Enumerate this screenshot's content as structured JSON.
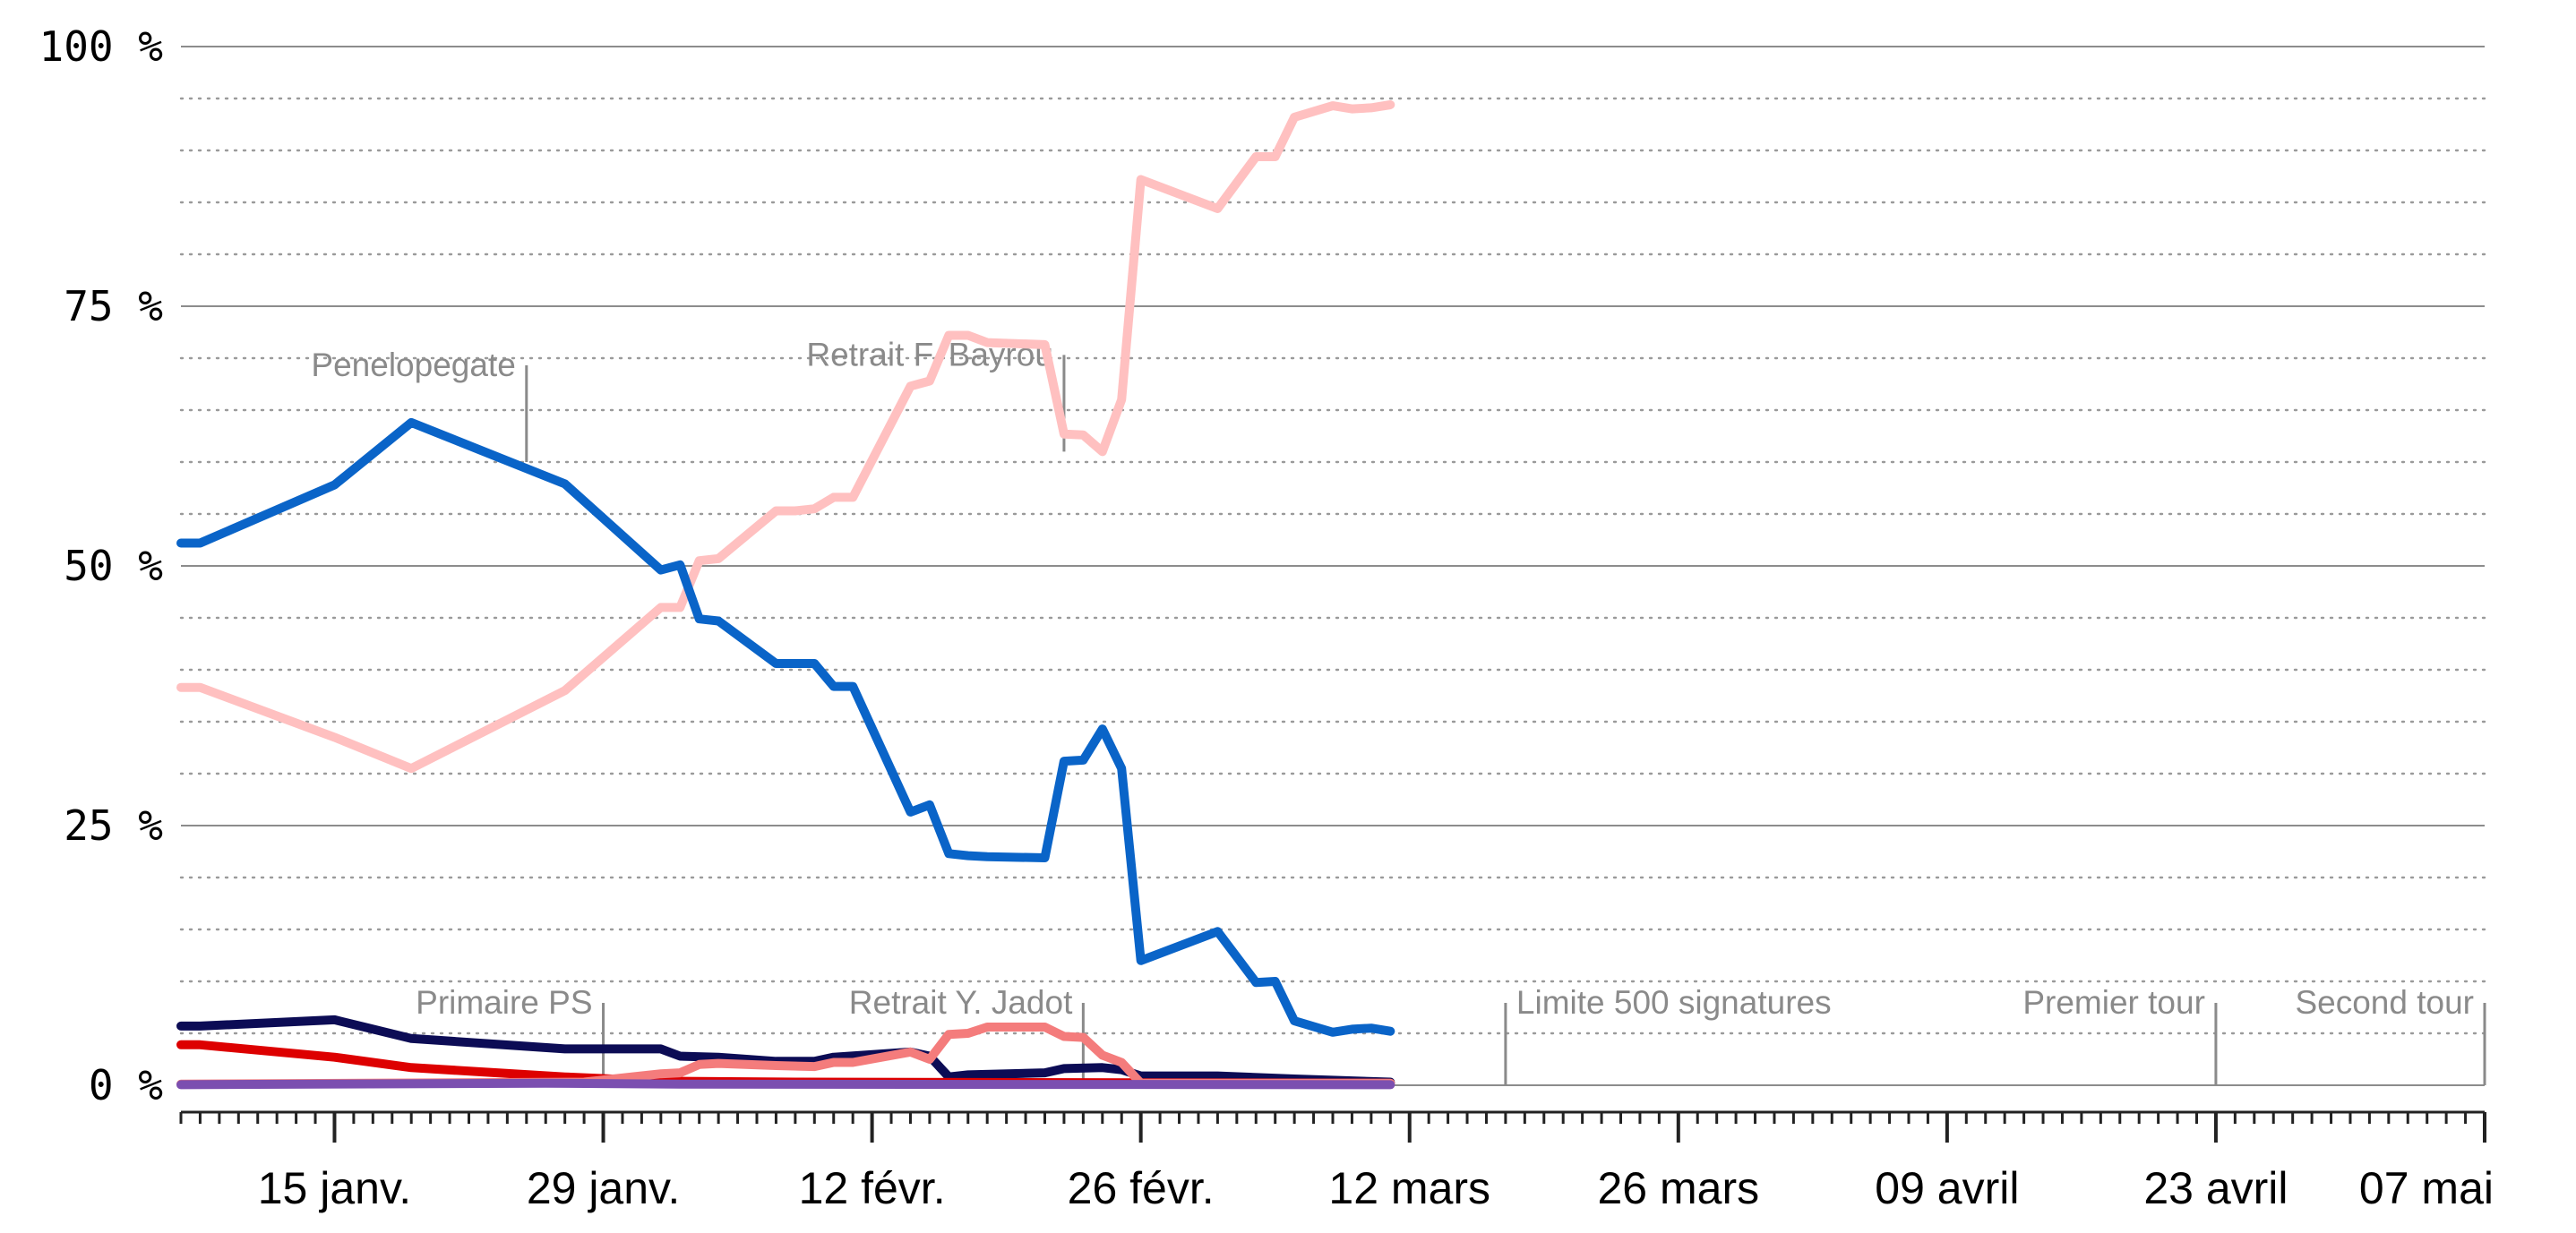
{
  "chart_data": {
    "type": "line",
    "x_axis": {
      "ticks": [
        {
          "date": "2017-01-15",
          "label": "15 janv."
        },
        {
          "date": "2017-01-29",
          "label": "29 janv."
        },
        {
          "date": "2017-02-12",
          "label": "12 févr."
        },
        {
          "date": "2017-02-26",
          "label": "26 févr."
        },
        {
          "date": "2017-03-12",
          "label": "12 mars"
        },
        {
          "date": "2017-03-26",
          "label": "26 mars"
        },
        {
          "date": "2017-04-09",
          "label": "09 avril"
        },
        {
          "date": "2017-04-23",
          "label": "23 avril"
        },
        {
          "date": "2017-05-07",
          "label": "07 mai"
        }
      ],
      "range": [
        "2017-01-07",
        "2017-05-07"
      ]
    },
    "y_axis": {
      "ticks": [
        {
          "value": 0,
          "label": "0 %"
        },
        {
          "value": 25,
          "label": "25 %"
        },
        {
          "value": 50,
          "label": "50 %"
        },
        {
          "value": 75,
          "label": "75 %"
        },
        {
          "value": 100,
          "label": "100 %"
        }
      ],
      "ylim": [
        0,
        100
      ],
      "minor_grid_step": 5,
      "grid": true
    },
    "annotations": [
      {
        "date": "2017-01-25",
        "label": "Penelopegate",
        "value": 60
      },
      {
        "date": "2017-01-29",
        "label": "Primaire PS",
        "value": 0
      },
      {
        "date": "2017-02-22",
        "label": "Retrait F. Bayrou",
        "value": 61
      },
      {
        "date": "2017-02-23",
        "label": "Retrait Y. Jadot",
        "value": 0
      },
      {
        "date": "2017-03-17",
        "label": "Limite 500 signatures",
        "value": 0
      },
      {
        "date": "2017-04-23",
        "label": "Premier tour",
        "value": 0
      },
      {
        "date": "2017-05-07",
        "label": "Second tour",
        "value": 0
      }
    ],
    "series": [
      {
        "color": "#ffc0c0",
        "points": [
          [
            "2017-01-07",
            38.3
          ],
          [
            "2017-01-08",
            38.3
          ],
          [
            "2017-01-15",
            33.5
          ],
          [
            "2017-01-19",
            30.5
          ],
          [
            "2017-01-27",
            38
          ],
          [
            "2017-02-01",
            46
          ],
          [
            "2017-02-02",
            46
          ],
          [
            "2017-02-03",
            50.5
          ],
          [
            "2017-02-04",
            50.7
          ],
          [
            "2017-02-07",
            55.3
          ],
          [
            "2017-02-08",
            55.3
          ],
          [
            "2017-02-09",
            55.5
          ],
          [
            "2017-02-10",
            56.6
          ],
          [
            "2017-02-11",
            56.6
          ],
          [
            "2017-02-14",
            67.3
          ],
          [
            "2017-02-15",
            67.8
          ],
          [
            "2017-02-16",
            72.2
          ],
          [
            "2017-02-17",
            72.2
          ],
          [
            "2017-02-18",
            71.5
          ],
          [
            "2017-02-21",
            71.3
          ],
          [
            "2017-02-22",
            62.7
          ],
          [
            "2017-02-23",
            62.6
          ],
          [
            "2017-02-24",
            61
          ],
          [
            "2017-02-25",
            66
          ],
          [
            "2017-02-26",
            87.2
          ],
          [
            "2017-03-02",
            84.4
          ],
          [
            "2017-03-04",
            89.4
          ],
          [
            "2017-03-05",
            89.4
          ],
          [
            "2017-03-06",
            93.2
          ],
          [
            "2017-03-08",
            94.3
          ],
          [
            "2017-03-09",
            94
          ],
          [
            "2017-03-10",
            94.1
          ],
          [
            "2017-03-11",
            94.4
          ]
        ]
      },
      {
        "color": "#0a64c8",
        "points": [
          [
            "2017-01-07",
            52.2
          ],
          [
            "2017-01-08",
            52.2
          ],
          [
            "2017-01-15",
            57.8
          ],
          [
            "2017-01-19",
            63.8
          ],
          [
            "2017-01-27",
            57.9
          ],
          [
            "2017-02-01",
            49.6
          ],
          [
            "2017-02-02",
            50.1
          ],
          [
            "2017-02-03",
            44.9
          ],
          [
            "2017-02-04",
            44.7
          ],
          [
            "2017-02-07",
            40.6
          ],
          [
            "2017-02-08",
            40.6
          ],
          [
            "2017-02-09",
            40.6
          ],
          [
            "2017-02-10",
            38.4
          ],
          [
            "2017-02-11",
            38.4
          ],
          [
            "2017-02-14",
            26.3
          ],
          [
            "2017-02-15",
            27
          ],
          [
            "2017-02-16",
            22.3
          ],
          [
            "2017-02-17",
            22.1
          ],
          [
            "2017-02-18",
            22
          ],
          [
            "2017-02-21",
            21.9
          ],
          [
            "2017-02-22",
            31.2
          ],
          [
            "2017-02-23",
            31.3
          ],
          [
            "2017-02-24",
            34.3
          ],
          [
            "2017-02-25",
            30.5
          ],
          [
            "2017-02-26",
            12
          ],
          [
            "2017-03-02",
            14.8
          ],
          [
            "2017-03-04",
            9.9
          ],
          [
            "2017-03-05",
            10
          ],
          [
            "2017-03-06",
            6.2
          ],
          [
            "2017-03-08",
            5.1
          ],
          [
            "2017-03-09",
            5.4
          ],
          [
            "2017-03-10",
            5.5
          ],
          [
            "2017-03-11",
            5.2
          ]
        ]
      },
      {
        "color": "#0c0c55",
        "points": [
          [
            "2017-01-07",
            5.7
          ],
          [
            "2017-01-08",
            5.7
          ],
          [
            "2017-01-15",
            6.3
          ],
          [
            "2017-01-19",
            4.5
          ],
          [
            "2017-01-27",
            3.5
          ],
          [
            "2017-02-01",
            3.5
          ],
          [
            "2017-02-02",
            2.8
          ],
          [
            "2017-02-04",
            2.7
          ],
          [
            "2017-02-07",
            2.3
          ],
          [
            "2017-02-09",
            2.3
          ],
          [
            "2017-02-10",
            2.7
          ],
          [
            "2017-02-14",
            3.2
          ],
          [
            "2017-02-15",
            2.8
          ],
          [
            "2017-02-16",
            0.8
          ],
          [
            "2017-02-17",
            1
          ],
          [
            "2017-02-21",
            1.2
          ],
          [
            "2017-02-22",
            1.6
          ],
          [
            "2017-02-24",
            1.7
          ],
          [
            "2017-02-25",
            1.5
          ],
          [
            "2017-02-26",
            0.9
          ],
          [
            "2017-03-02",
            0.9
          ],
          [
            "2017-03-06",
            0.6
          ],
          [
            "2017-03-11",
            0.3
          ]
        ]
      },
      {
        "color": "#dd0000",
        "points": [
          [
            "2017-01-07",
            3.9
          ],
          [
            "2017-01-08",
            3.9
          ],
          [
            "2017-01-15",
            2.7
          ],
          [
            "2017-01-19",
            1.7
          ],
          [
            "2017-01-27",
            0.8
          ],
          [
            "2017-02-01",
            0.4
          ],
          [
            "2017-02-08",
            0.3
          ],
          [
            "2017-03-11",
            0.2
          ]
        ]
      },
      {
        "color": "#f47c7c",
        "points": [
          [
            "2017-01-07",
            0.1
          ],
          [
            "2017-01-28",
            0.3
          ],
          [
            "2017-02-01",
            1.1
          ],
          [
            "2017-02-02",
            1.2
          ],
          [
            "2017-02-03",
            2
          ],
          [
            "2017-02-04",
            2.1
          ],
          [
            "2017-02-07",
            1.9
          ],
          [
            "2017-02-09",
            1.8
          ],
          [
            "2017-02-10",
            2.2
          ],
          [
            "2017-02-11",
            2.2
          ],
          [
            "2017-02-14",
            3.2
          ],
          [
            "2017-02-15",
            2.5
          ],
          [
            "2017-02-16",
            4.9
          ],
          [
            "2017-02-17",
            5
          ],
          [
            "2017-02-18",
            5.6
          ],
          [
            "2017-02-21",
            5.6
          ],
          [
            "2017-02-22",
            4.7
          ],
          [
            "2017-02-23",
            4.6
          ],
          [
            "2017-02-24",
            2.9
          ],
          [
            "2017-02-25",
            2.2
          ],
          [
            "2017-02-26",
            0.2
          ],
          [
            "2017-03-11",
            0.2
          ]
        ]
      },
      {
        "color": "#7b4fb0",
        "points": [
          [
            "2017-01-07",
            0.05
          ],
          [
            "2017-01-26",
            0.2
          ],
          [
            "2017-02-02",
            0.1
          ],
          [
            "2017-03-11",
            0.05
          ]
        ]
      }
    ]
  }
}
